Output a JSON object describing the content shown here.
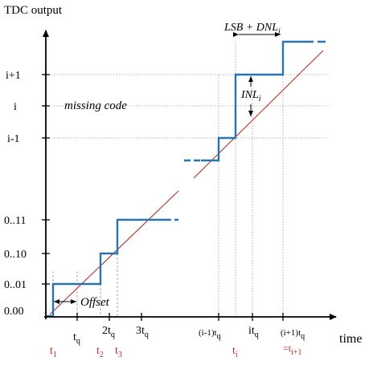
{
  "y_axis_title": "TDC output",
  "x_axis_title": "time",
  "y_ticks": {
    "ip1": "i+1",
    "i": "i",
    "im1": "i-1",
    "c11": "0..11",
    "c10": "0..10",
    "c01": "0..01",
    "c00": "0.00"
  },
  "x_ticks": {
    "tq": {
      "base": "t",
      "sub": "q"
    },
    "tq2": {
      "base": "2t",
      "sub": "q"
    },
    "tq3": {
      "base": "3t",
      "sub": "q"
    },
    "im1tq": {
      "pre": "(i-1)t",
      "sub": "q"
    },
    "itq": {
      "base": "it",
      "sub": "q"
    },
    "ip1tq": {
      "pre": "(i+1)t",
      "sub": "q"
    }
  },
  "transition_times": {
    "t1": {
      "base": "t",
      "sub": "1"
    },
    "t2": {
      "base": "t",
      "sub": "2"
    },
    "t3": {
      "base": "t",
      "sub": "3"
    },
    "ti": {
      "base": "t",
      "sub": "i"
    },
    "tip1": {
      "pre": "=t",
      "sub": "i+1"
    }
  },
  "annotations": {
    "missing_code": "missing code",
    "lsb_dnl": "LSB + DNL",
    "lsb_dnl_sub": "i",
    "inl": "INL",
    "inl_sub": "i",
    "offset": "Offset"
  },
  "colors": {
    "staircase": "#2874b2",
    "ideal_line": "#b5302a",
    "time_labels": "#b5302a",
    "axis": "#000000",
    "guides": "#999999"
  }
}
